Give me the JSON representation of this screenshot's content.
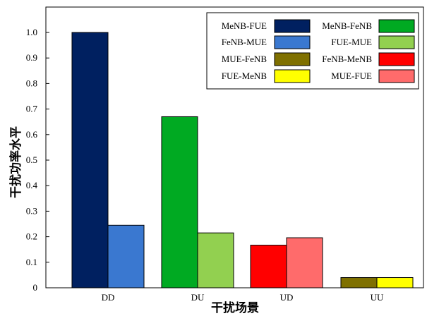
{
  "chart_data": {
    "type": "bar",
    "categories": [
      "DD",
      "DU",
      "UD",
      "UU"
    ],
    "xlabel": "干扰场景",
    "ylabel": "干扰功率水平",
    "ylim": [
      0,
      1.05
    ],
    "yticks": [
      0,
      0.1,
      0.2,
      0.3,
      0.4,
      0.5,
      0.6,
      0.7,
      0.8,
      0.9,
      1.0
    ],
    "ytick_labels": [
      "0",
      "0.1",
      "0.2",
      "0.3",
      "0.4",
      "0.5",
      "0.6",
      "0.7",
      "0.8",
      "0.9",
      "1.0"
    ],
    "grid": false,
    "legend_position": "top-right",
    "series": [
      {
        "name": "MeNB-FUE",
        "color": "#002060",
        "category": "DD",
        "value": 1.0
      },
      {
        "name": "FeNB-MUE",
        "color": "#3A78D0",
        "category": "DD",
        "value": 0.245
      },
      {
        "name": "MeNB-FeNB",
        "color": "#00AA22",
        "category": "DU",
        "value": 0.67
      },
      {
        "name": "FUE-MUE",
        "color": "#92D050",
        "category": "DU",
        "value": 0.215
      },
      {
        "name": "FeNB-MeNB",
        "color": "#FF0000",
        "category": "UD",
        "value": 0.167
      },
      {
        "name": "MUE-FUE",
        "color": "#FF6B6B",
        "category": "UD",
        "value": 0.196
      },
      {
        "name": "MUE-FeNB",
        "color": "#7F7000",
        "category": "UU",
        "value": 0.04
      },
      {
        "name": "FUE-MeNB",
        "color": "#FFFF00",
        "category": "UU",
        "value": 0.04
      }
    ],
    "legend_order": [
      "MeNB-FUE",
      "MeNB-FeNB",
      "FeNB-MUE",
      "FUE-MUE",
      "MUE-FeNB",
      "FeNB-MeNB",
      "FUE-MeNB",
      "MUE-FUE"
    ]
  }
}
